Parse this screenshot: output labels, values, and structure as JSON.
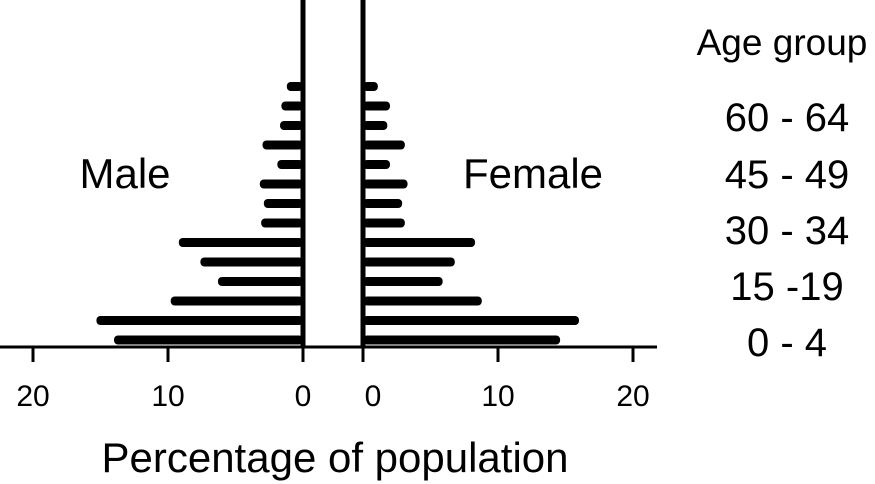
{
  "chart_data": {
    "type": "bar",
    "subtype": "population-pyramid",
    "left_label": "Male",
    "right_label": "Female",
    "xlabel": "Percentage of population",
    "legend_title": "Age group",
    "x_range": [
      0,
      20
    ],
    "left_tick_labels": [
      "20",
      "10",
      "0"
    ],
    "right_tick_labels": [
      "0",
      "10",
      "20"
    ],
    "age_labels_shown": [
      "60 - 64",
      "45 - 49",
      "30 - 34",
      "15 -19",
      "0 - 4"
    ],
    "categories": [
      "0-4",
      "5-9",
      "10-14",
      "15-19",
      "20-24",
      "25-29",
      "30-34",
      "35-39",
      "40-44",
      "45-49",
      "50-54",
      "55-59",
      "60-64",
      "65-69"
    ],
    "series": [
      {
        "name": "Male",
        "values": [
          14.0,
          15.3,
          9.8,
          6.3,
          7.6,
          9.2,
          3.1,
          2.9,
          3.2,
          1.9,
          3.0,
          1.7,
          1.6,
          1.2
        ]
      },
      {
        "name": "Female",
        "values": [
          14.6,
          16.0,
          8.8,
          5.9,
          6.8,
          8.3,
          3.1,
          2.9,
          3.3,
          2.0,
          3.1,
          1.8,
          2.0,
          1.1
        ]
      }
    ]
  }
}
